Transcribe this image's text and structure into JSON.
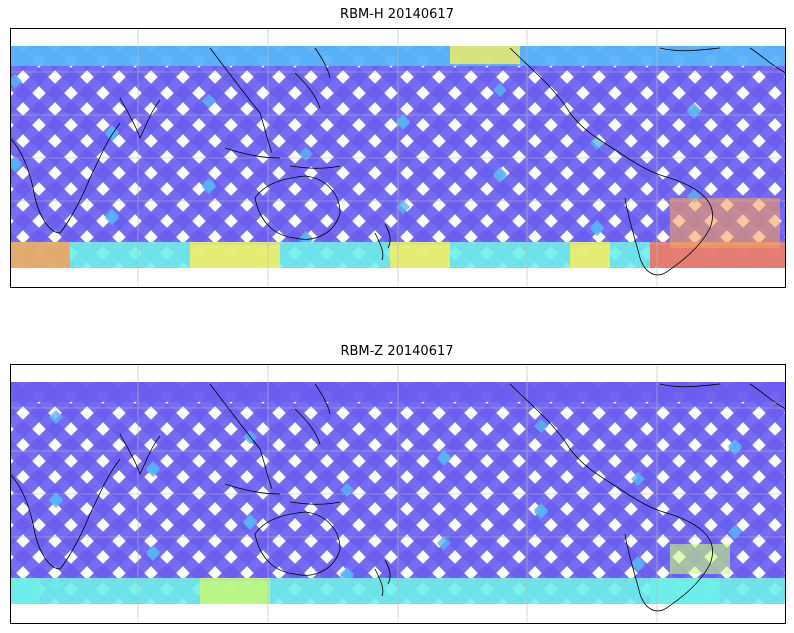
{
  "panels": [
    {
      "title": "RBM-H 20140617",
      "colormap": [
        "#6a5ef0",
        "#5ab4f8",
        "#6ff0ea",
        "#c8f878",
        "#f8ee60",
        "#f8a05a",
        "#f86a5e"
      ],
      "band_intensity": {
        "north": 0.2,
        "south": 0.85
      }
    },
    {
      "title": "RBM-Z 20140617",
      "colormap": [
        "#6a5ef0",
        "#5ab4f8",
        "#6ff0ea",
        "#c8f878",
        "#f8ee60",
        "#f8a05a",
        "#f86a5e"
      ],
      "band_intensity": {
        "north": 0.05,
        "south": 0.45
      }
    }
  ],
  "map": {
    "projection": "plate-carree",
    "central_longitude": 180,
    "gridlines": true,
    "coastlines": true,
    "lon_ticks": [
      60,
      120,
      180,
      240,
      300
    ],
    "lat_range": [
      -75,
      75
    ]
  }
}
